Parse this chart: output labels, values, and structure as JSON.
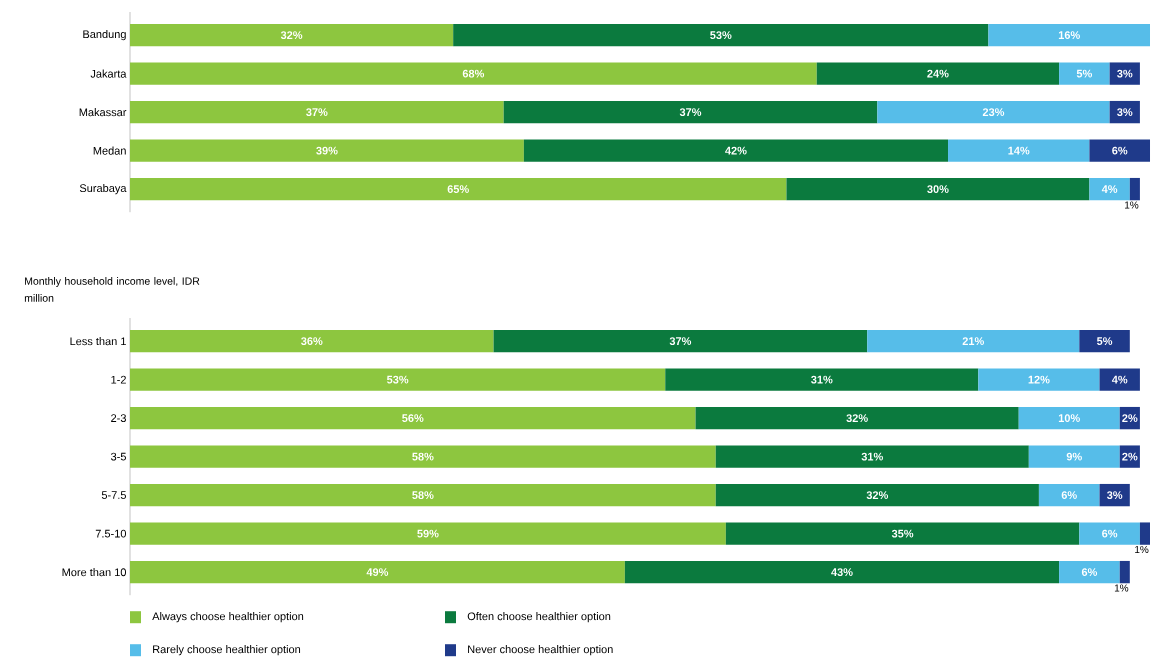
{
  "chart_data": [
    {
      "type": "bar",
      "orientation": "horizontal",
      "stacked": true,
      "categories": [
        "Bandung",
        "Jakarta",
        "Makassar",
        "Medan",
        "Surabaya"
      ],
      "series": [
        {
          "color": "#8dc63f",
          "values": [
            32,
            68,
            37,
            39,
            65
          ],
          "value_labels": [
            "32%",
            "68%",
            "37%",
            "39%",
            "65%"
          ]
        },
        {
          "color": "#0b7a3e",
          "values": [
            53,
            24,
            37,
            42,
            30
          ],
          "value_labels": [
            "53%",
            "24%",
            "37%",
            "42%",
            "30%"
          ]
        },
        {
          "color": "#56bde9",
          "values": [
            16,
            5,
            23,
            14,
            4
          ],
          "value_labels": [
            "16%",
            "5%",
            "23%",
            "14%",
            "4%"
          ]
        },
        {
          "color": "#1f3a8a",
          "values": [
            null,
            3,
            3,
            6,
            1
          ],
          "value_labels": [
            null,
            "3%",
            "3%",
            "6%",
            "1%"
          ]
        }
      ]
    },
    {
      "type": "bar",
      "orientation": "horizontal",
      "stacked": true,
      "ylabel": "Monthly household income level, IDR million",
      "legend": "bottom",
      "categories": [
        "Less than 1",
        "1-2",
        "2-3",
        "3-5",
        "5-7.5",
        "7.5-10",
        "More than 10"
      ],
      "series": [
        {
          "name": "Always choose healthier option",
          "color": "#8dc63f",
          "values": [
            36,
            53,
            56,
            58,
            58,
            59,
            49
          ],
          "value_labels": [
            "36%",
            "53%",
            "56%",
            "58%",
            "58%",
            "59%",
            "49%"
          ]
        },
        {
          "name": "Often choose healthier option",
          "color": "#0b7a3e",
          "values": [
            37,
            31,
            32,
            31,
            32,
            35,
            43
          ],
          "value_labels": [
            "37%",
            "31%",
            "32%",
            "31%",
            "32%",
            "35%",
            "43%"
          ]
        },
        {
          "name": "Rarely choose healthier option",
          "color": "#56bde9",
          "values": [
            21,
            12,
            10,
            9,
            6,
            6,
            6
          ],
          "value_labels": [
            "21%",
            "12%",
            "10%",
            "9%",
            "6%",
            "6%",
            "6%"
          ]
        },
        {
          "name": "Never choose healthier option",
          "color": "#1f3a8a",
          "values": [
            5,
            4,
            2,
            2,
            3,
            1,
            1
          ],
          "value_labels": [
            "5%",
            "4%",
            "2%",
            "2%",
            "3%",
            "1%",
            "1%"
          ]
        }
      ]
    }
  ]
}
